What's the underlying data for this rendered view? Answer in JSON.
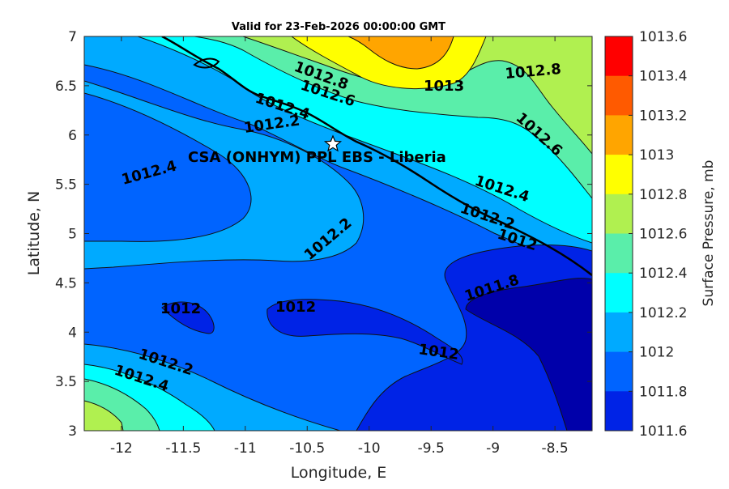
{
  "title": "Valid for 23-Feb-2026 00:00:00 GMT",
  "x_axis": {
    "label": "Longitude, E",
    "ticks": [
      "-12",
      "-11.5",
      "-11",
      "-10.5",
      "-10",
      "-9.5",
      "-9",
      "-8.5"
    ]
  },
  "y_axis": {
    "label": "Latitude, N",
    "ticks": [
      "7",
      "6.5",
      "6",
      "5.5",
      "5",
      "4.5",
      "4",
      "3.5",
      "3"
    ]
  },
  "colorbar": {
    "label": "Surface Pressure, mb",
    "levels": [
      {
        "value": "1013.6",
        "color": "#ff0000"
      },
      {
        "value": "1013.4",
        "color": "#ff5a00"
      },
      {
        "value": "1013.2",
        "color": "#ffa500"
      },
      {
        "value": "1013",
        "color": "#ffff00"
      },
      {
        "value": "1012.8",
        "color": "#b0f050"
      },
      {
        "value": "1012.6",
        "color": "#5aeeaa"
      },
      {
        "value": "1012.4",
        "color": "#00ffff"
      },
      {
        "value": "1012.2",
        "color": "#00aaff"
      },
      {
        "value": "1012",
        "color": "#0064ff"
      },
      {
        "value": "1011.8",
        "color": "#0023e6"
      },
      {
        "value": "1011.6",
        "color": "#0000aa"
      }
    ]
  },
  "site": {
    "label": "CSA (ONHYM) PPL EBS  - Liberia",
    "marker": "star-icon",
    "lon": -10.3,
    "lat": 5.9
  },
  "contour_labels": [
    {
      "text": "1012.8"
    },
    {
      "text": "1013"
    },
    {
      "text": "1012.8"
    },
    {
      "text": "1012.6"
    },
    {
      "text": "1012.4"
    },
    {
      "text": "1012.2"
    },
    {
      "text": "1012.6"
    },
    {
      "text": "1012.4"
    },
    {
      "text": "1012.4"
    },
    {
      "text": "1012.2"
    },
    {
      "text": "1012"
    },
    {
      "text": "1012.2"
    },
    {
      "text": "1011.8"
    },
    {
      "text": "1012"
    },
    {
      "text": "1012"
    },
    {
      "text": "1012"
    },
    {
      "text": "1012.2"
    },
    {
      "text": "1012.4"
    }
  ]
}
